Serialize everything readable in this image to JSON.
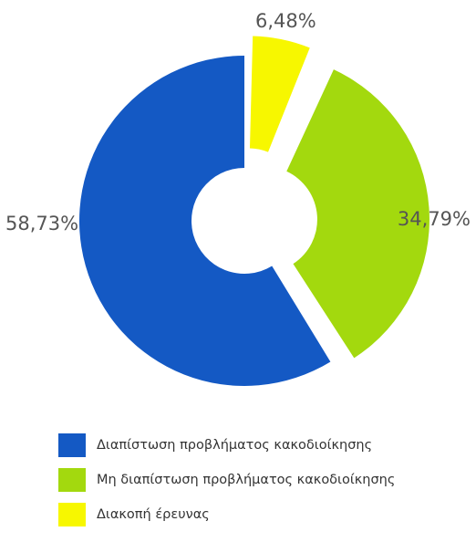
{
  "chart_data": {
    "type": "pie",
    "subtype": "donut-exploded",
    "categories": [
      "Διαπίστωση προβλήματος κακοδιοίκησης",
      "Μη διαπίστωση προβλήματος κακοδιοίκησης",
      "Διακοπή έρευνας"
    ],
    "values": [
      58.73,
      34.79,
      6.48
    ],
    "value_labels": [
      "58,73%",
      "34,79%",
      "6,48%"
    ],
    "colors": [
      "#1459c4",
      "#a3d90e",
      "#f7f700"
    ],
    "exploded": [
      false,
      true,
      true
    ],
    "legend_placement": "bottom"
  }
}
